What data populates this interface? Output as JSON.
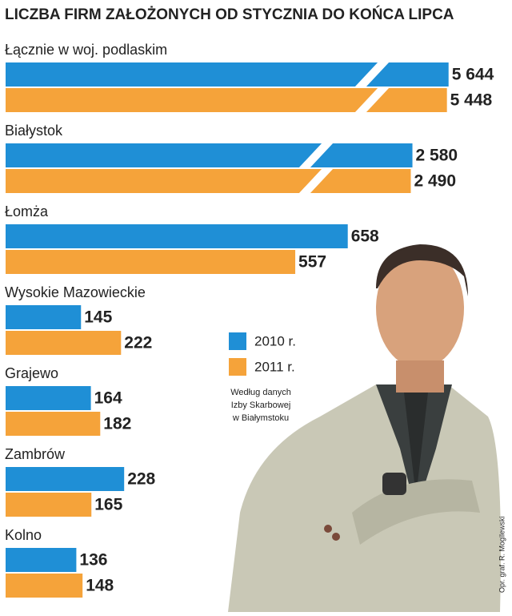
{
  "chart_data": {
    "type": "bar",
    "orientation": "horizontal",
    "title": "LICZBA FIRM ZAŁOŻONYCH OD STYCZNIA DO KOŃCA LIPCA",
    "categories": [
      "Łącznie w woj. podlaskim",
      "Białystok",
      "Łomża",
      "Wysokie Mazowieckie",
      "Grajewo",
      "Zambrów",
      "Kolno"
    ],
    "series": [
      {
        "name": "2010 r.",
        "color": "#1f8fd6",
        "values": [
          5644,
          2580,
          658,
          145,
          164,
          228,
          136
        ],
        "value_labels": [
          "5 644",
          "2 580",
          "658",
          "145",
          "164",
          "228",
          "136"
        ]
      },
      {
        "name": "2011 r.",
        "color": "#f5a33a",
        "values": [
          5448,
          2490,
          557,
          222,
          182,
          165,
          148
        ],
        "value_labels": [
          "5 448",
          "2 490",
          "557",
          "222",
          "182",
          "165",
          "148"
        ]
      }
    ],
    "note": [
      "Według danych",
      "Izby Skarbowej",
      "w Białymstoku"
    ],
    "credit": "Opr. graf. R. Mogilewski"
  }
}
